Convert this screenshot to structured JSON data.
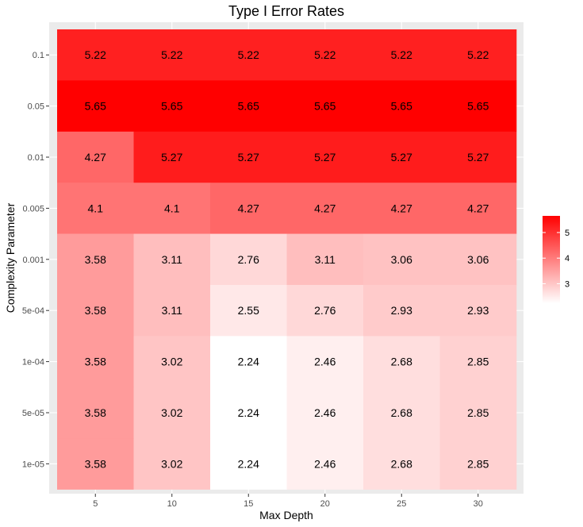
{
  "chart_data": {
    "type": "heatmap",
    "title": "Type I Error Rates",
    "xlabel": "Max Depth",
    "ylabel": "Complexity Parameter",
    "x_categories": [
      "5",
      "10",
      "15",
      "20",
      "25",
      "30"
    ],
    "y_categories": [
      "0.1",
      "0.05",
      "0.01",
      "0.005",
      "0.001",
      "5e-04",
      "1e-04",
      "5e-05",
      "1e-05"
    ],
    "cells": [
      [
        "5.22",
        "5.22",
        "5.22",
        "5.22",
        "5.22",
        "5.22"
      ],
      [
        "5.65",
        "5.65",
        "5.65",
        "5.65",
        "5.65",
        "5.65"
      ],
      [
        "4.27",
        "5.27",
        "5.27",
        "5.27",
        "5.27",
        "5.27"
      ],
      [
        "4.1",
        "4.1",
        "4.27",
        "4.27",
        "4.27",
        "4.27"
      ],
      [
        "3.58",
        "3.11",
        "2.76",
        "3.11",
        "3.06",
        "3.06"
      ],
      [
        "3.58",
        "3.11",
        "2.55",
        "2.76",
        "2.93",
        "2.93"
      ],
      [
        "3.58",
        "3.02",
        "2.24",
        "2.46",
        "2.68",
        "2.85"
      ],
      [
        "3.58",
        "3.02",
        "2.24",
        "2.46",
        "2.68",
        "2.85"
      ],
      [
        "3.58",
        "3.02",
        "2.24",
        "2.46",
        "2.68",
        "2.85"
      ]
    ],
    "color_scale": {
      "low": "#ffffff",
      "high": "#ff0000",
      "min": 2.24,
      "max": 5.65
    },
    "legend": {
      "position": "right",
      "ticks": [
        "3",
        "4",
        "5"
      ]
    },
    "grid": true,
    "panel_background": "#ebebeb"
  }
}
